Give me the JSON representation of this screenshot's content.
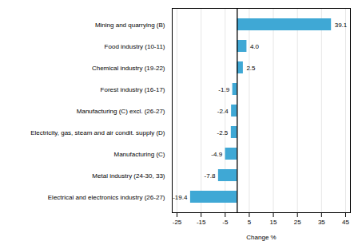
{
  "chart_data": {
    "type": "bar",
    "orientation": "horizontal",
    "categories": [
      "Electrical and electronics industry (26-27)",
      "Metal industry (24-30, 33)",
      "Manufacturing (C)",
      "Electricity, gas, steam and air condit. supply (D)",
      "Manufacturing (C) excl. (26-27)",
      "Forest industry (16-17)",
      "Chemical industry (19-22)",
      "Food industry (10-11)",
      "Mining and quarrying (B)"
    ],
    "values": [
      -19.4,
      -7.8,
      -4.9,
      -2.5,
      -2.4,
      -1.9,
      2.5,
      4.0,
      39.1
    ],
    "value_labels": [
      "-19.4",
      "-7.8",
      "-4.9",
      "-2.5",
      "-2.4",
      "-1.9",
      "2.5",
      "4.0",
      "39.1"
    ],
    "data_labels": true,
    "color": "#3fa8d5",
    "xlabel": "Change %",
    "xlim": [
      -27,
      47
    ],
    "xticks": [
      -25,
      -15,
      -5,
      5,
      15,
      25,
      35,
      45
    ],
    "grid": true
  }
}
